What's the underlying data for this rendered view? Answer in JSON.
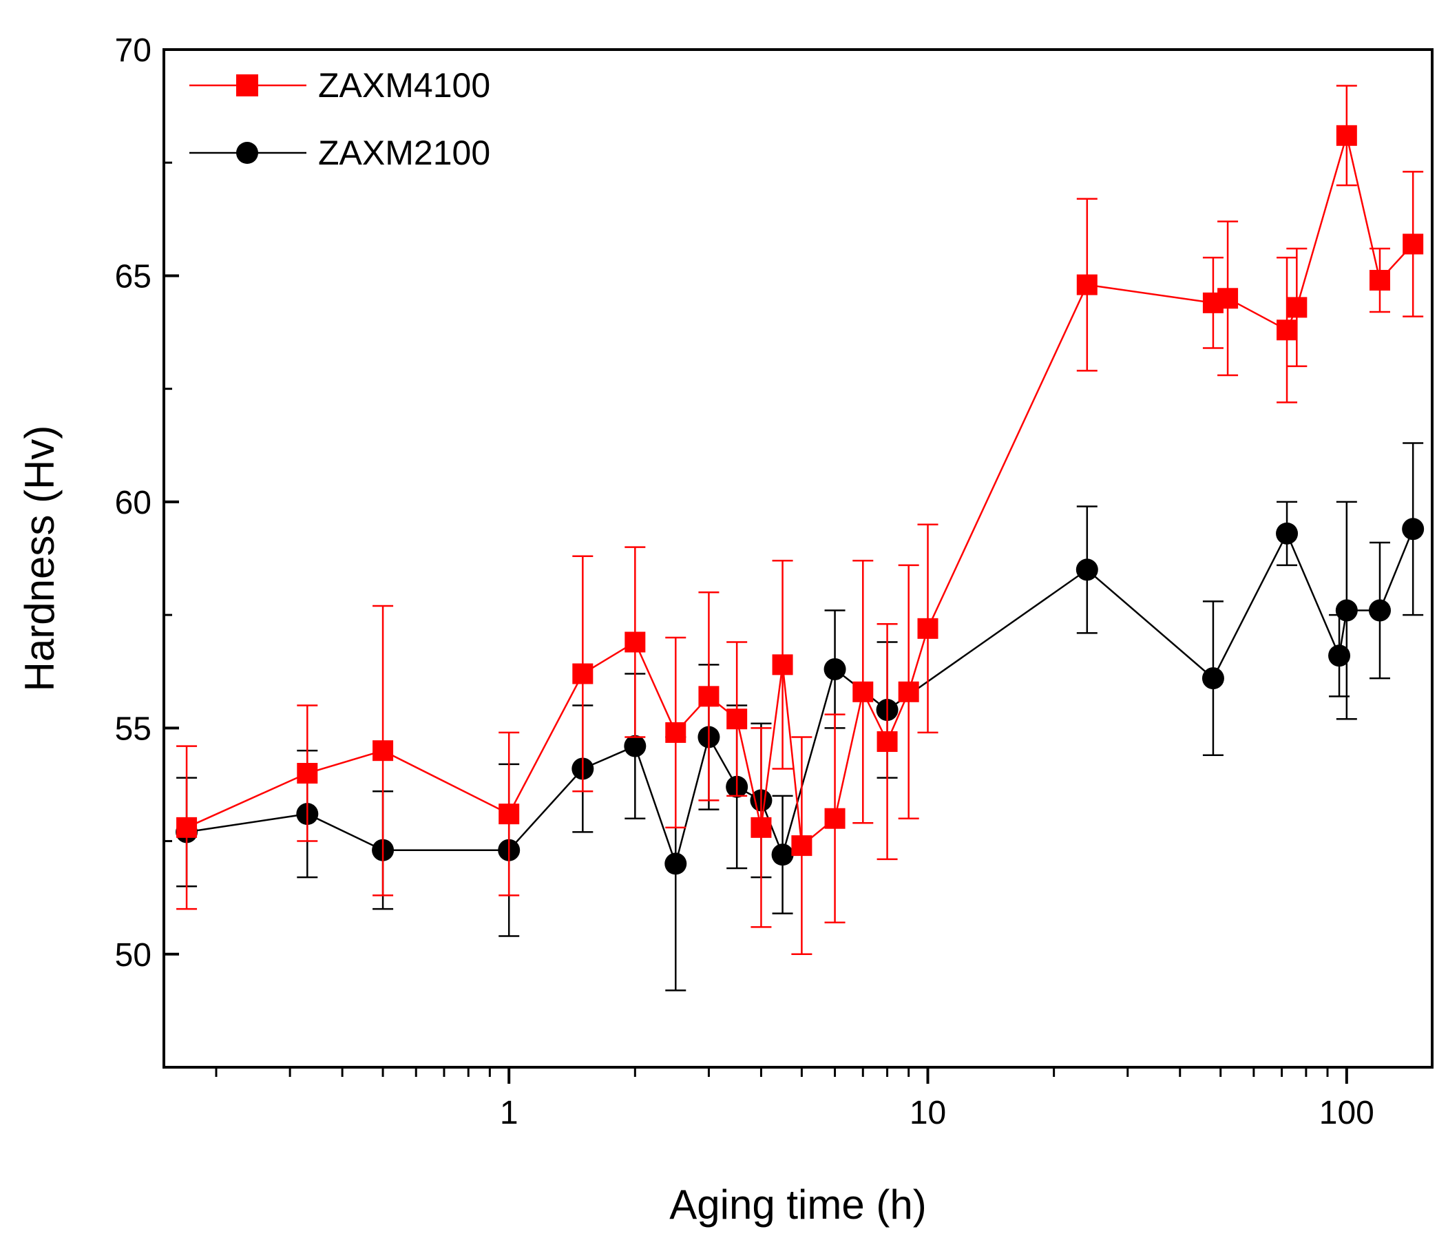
{
  "chart_data": {
    "type": "line",
    "title": "",
    "xlabel": "Aging time (h)",
    "ylabel": "Hardness (Hv)",
    "x_scale": "log",
    "xlim": [
      0.15,
      160
    ],
    "ylim": [
      47.5,
      70
    ],
    "x_major_ticks": [
      1,
      10,
      100
    ],
    "x_tick_labels": [
      "1",
      "10",
      "100"
    ],
    "y_major_ticks": [
      50,
      55,
      60,
      65,
      70
    ],
    "y_tick_labels": [
      "50",
      "55",
      "60",
      "65",
      "70"
    ],
    "legend_position": "top-left",
    "series": [
      {
        "name": "ZAXM4100",
        "color": "#ff0000",
        "marker": "square",
        "x": [
          0.17,
          0.33,
          0.5,
          1,
          1.5,
          2,
          2.5,
          3,
          3.5,
          4,
          4.5,
          5,
          6,
          7,
          8,
          9,
          10,
          24,
          48,
          52,
          72,
          76,
          100,
          120,
          144
        ],
        "y": [
          52.8,
          54.0,
          54.5,
          53.1,
          56.2,
          56.9,
          54.9,
          55.7,
          55.2,
          52.8,
          56.4,
          52.4,
          53.0,
          55.8,
          54.7,
          55.8,
          57.2,
          64.8,
          64.4,
          64.5,
          63.8,
          64.3,
          68.1,
          64.9,
          65.7
        ],
        "err": [
          1.8,
          1.5,
          3.2,
          1.8,
          2.6,
          2.1,
          2.1,
          2.3,
          1.7,
          2.2,
          2.3,
          2.4,
          2.3,
          2.9,
          2.6,
          2.8,
          2.3,
          1.9,
          1.0,
          1.7,
          1.6,
          1.3,
          1.1,
          0.7,
          1.6
        ]
      },
      {
        "name": "ZAXM2100",
        "color": "#000000",
        "marker": "circle",
        "x": [
          0.17,
          0.33,
          0.5,
          1,
          1.5,
          2,
          2.5,
          3,
          3.5,
          4,
          4.5,
          6,
          8,
          24,
          48,
          72,
          96,
          100,
          120,
          144
        ],
        "y": [
          52.7,
          53.1,
          52.3,
          52.3,
          54.1,
          54.6,
          52.0,
          54.8,
          53.7,
          53.4,
          52.2,
          56.3,
          55.4,
          58.5,
          56.1,
          59.3,
          56.6,
          57.6,
          57.6,
          59.4
        ],
        "err": [
          1.2,
          1.4,
          1.3,
          1.9,
          1.4,
          1.6,
          2.8,
          1.6,
          1.8,
          1.7,
          1.3,
          1.3,
          1.5,
          1.4,
          1.7,
          0.7,
          0.9,
          2.4,
          1.5,
          1.9
        ]
      }
    ]
  }
}
